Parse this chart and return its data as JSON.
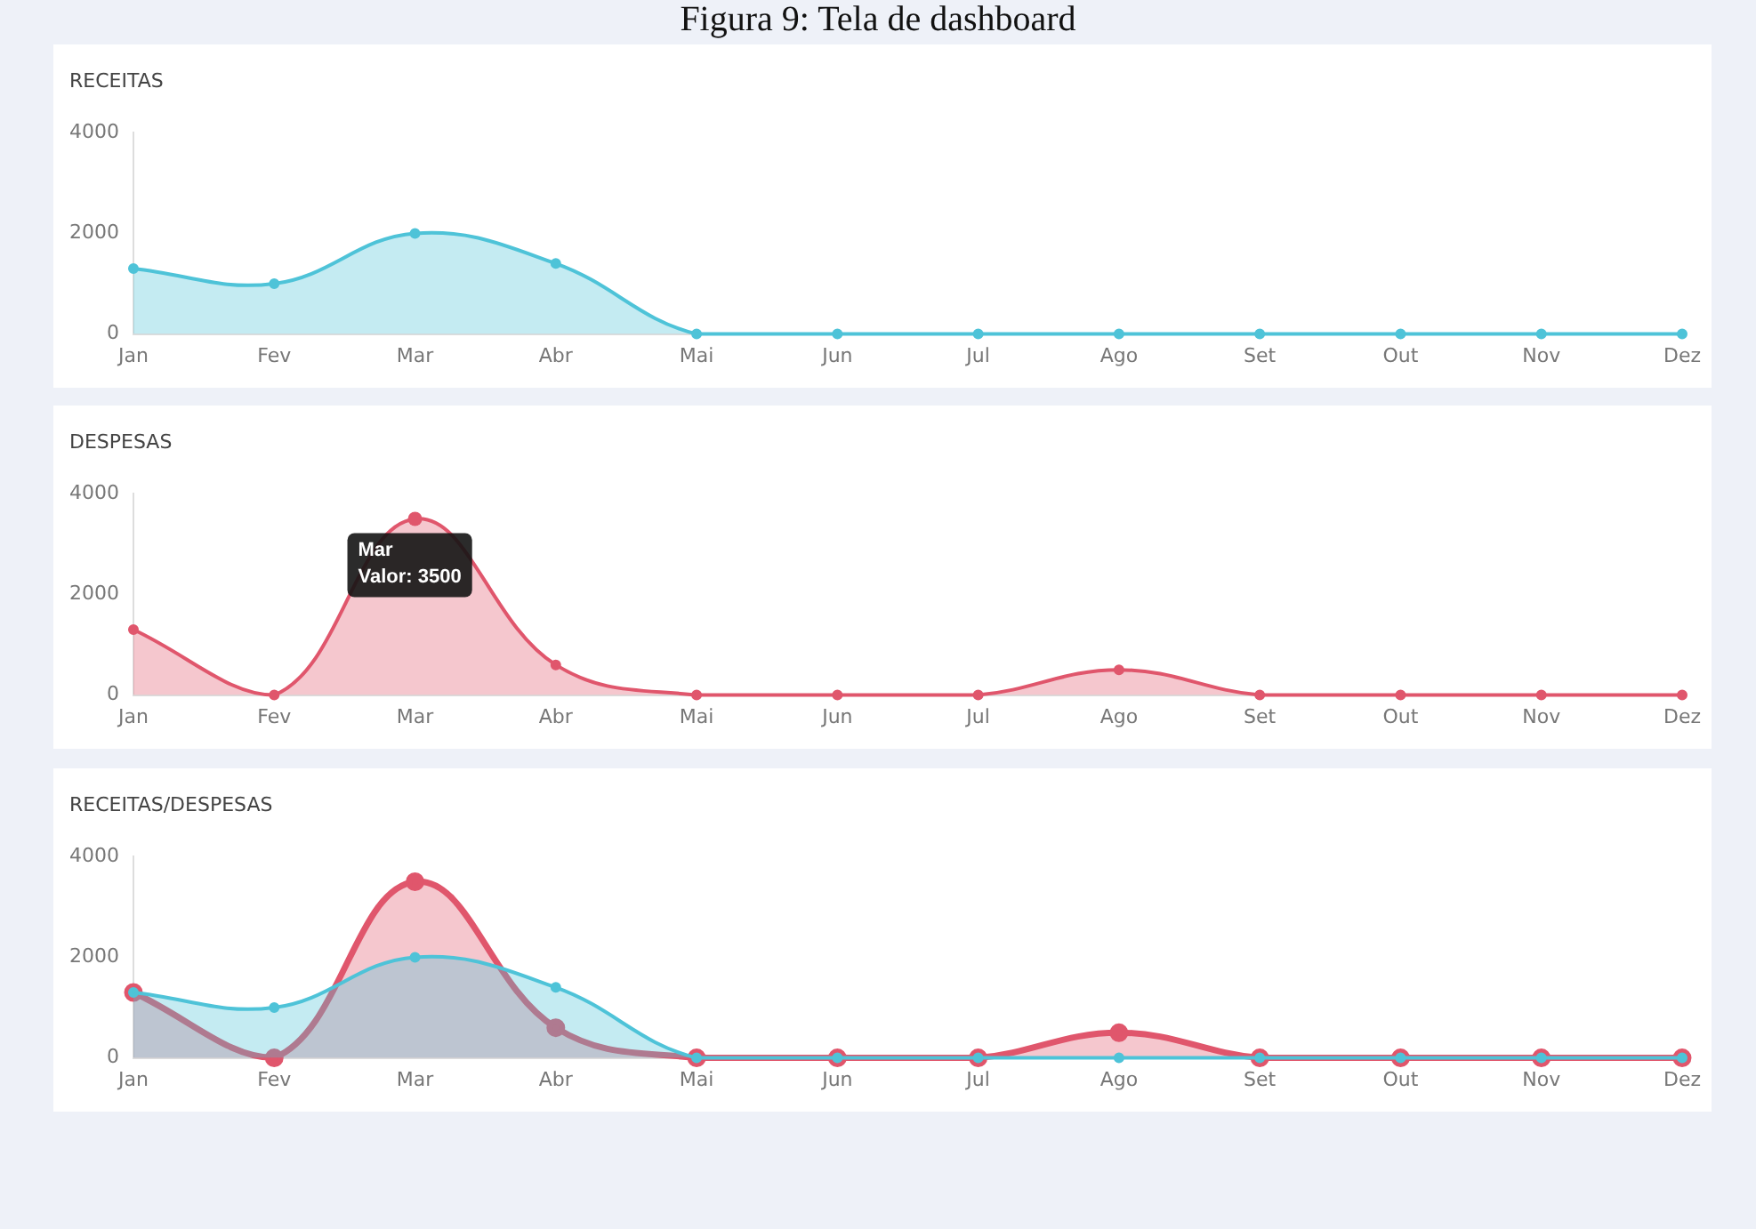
{
  "chart_data": [
    {
      "type": "area",
      "title": "RECEITAS",
      "annotations": [
        "Figura 9: Tela de dashboard"
      ],
      "categories": [
        "Jan",
        "Fev",
        "Mar",
        "Abr",
        "Mai",
        "Jun",
        "Jul",
        "Ago",
        "Set",
        "Out",
        "Nov",
        "Dez"
      ],
      "series": [
        {
          "color": "#4ec3d8",
          "values": [
            1300,
            1000,
            2000,
            1400,
            0,
            0,
            0,
            0,
            0,
            0,
            0,
            0
          ]
        }
      ],
      "ylim": [
        0,
        4000
      ],
      "yticks": [
        0,
        2000,
        4000
      ],
      "grid": false,
      "marker": "circle"
    },
    {
      "type": "area",
      "title": "DESPESAS",
      "annotations": [
        {
          "text": "Mar\nValor: 3500",
          "x": "Mar",
          "y": 3500
        }
      ],
      "categories": [
        "Jan",
        "Fev",
        "Mar",
        "Abr",
        "Mai",
        "Jun",
        "Jul",
        "Ago",
        "Set",
        "Out",
        "Nov",
        "Dez"
      ],
      "series": [
        {
          "color": "#e0566c",
          "values": [
            1300,
            0,
            3500,
            600,
            0,
            0,
            0,
            500,
            0,
            0,
            0,
            0
          ]
        }
      ],
      "ylim": [
        0,
        4000
      ],
      "yticks": [
        0,
        2000,
        4000
      ],
      "grid": false,
      "marker": "circle"
    },
    {
      "type": "area",
      "title": "RECEITAS/DESPESAS",
      "categories": [
        "Jan",
        "Fev",
        "Mar",
        "Abr",
        "Mai",
        "Jun",
        "Jul",
        "Ago",
        "Set",
        "Out",
        "Nov",
        "Dez"
      ],
      "series": [
        {
          "color": "#e0566c",
          "values": [
            1300,
            0,
            3500,
            600,
            0,
            0,
            0,
            500,
            0,
            0,
            0,
            0
          ]
        },
        {
          "color": "#4ec3d8",
          "values": [
            1300,
            1000,
            2000,
            1400,
            0,
            0,
            0,
            0,
            0,
            0,
            0,
            0
          ]
        }
      ],
      "ylim": [
        0,
        4000
      ],
      "yticks": [
        0,
        2000,
        4000
      ],
      "grid": false,
      "marker": "circle"
    }
  ]
}
